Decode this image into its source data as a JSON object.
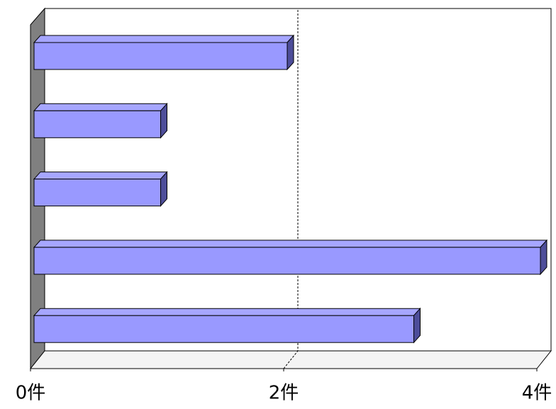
{
  "chart_data": {
    "type": "bar3d_horizontal",
    "categories": [
      null,
      null,
      null,
      null,
      null
    ],
    "values": [
      2,
      1,
      1,
      4,
      3
    ],
    "color": "#9999ff",
    "xlim": [
      0,
      4
    ],
    "xticks": [
      {
        "value": 0,
        "label": "0件"
      },
      {
        "value": 2,
        "label": "2件"
      },
      {
        "value": 4,
        "label": "4件"
      }
    ],
    "grid": true
  }
}
